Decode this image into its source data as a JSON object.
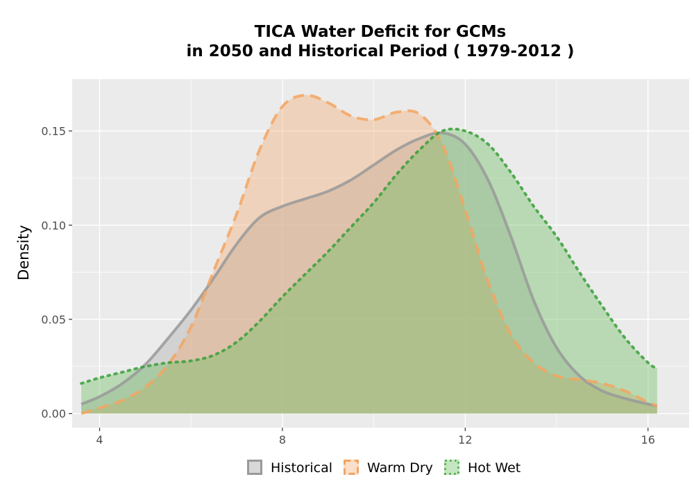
{
  "chart_data": {
    "type": "area",
    "title_line1": "TICA  Water Deficit for GCMs",
    "title_line2": "in 2050 and Historical Period ( 1979-2012 )",
    "xlabel": "",
    "ylabel": "Density",
    "xlim": [
      3.4,
      16.9
    ],
    "ylim": [
      -0.0075,
      0.1775
    ],
    "x_ticks": [
      4,
      8,
      12,
      16
    ],
    "x_tick_labels": [
      "4",
      "8",
      "12",
      "16"
    ],
    "y_ticks": [
      0.0,
      0.05,
      0.1,
      0.15
    ],
    "y_tick_labels": [
      "0.00",
      "0.05",
      "0.10",
      "0.15"
    ],
    "grid": true,
    "legend_position": "bottom",
    "series": [
      {
        "name": "Historical",
        "color": "#999999",
        "fill": "#c8c8c8",
        "fill_opacity": 0.7,
        "line_style": "solid",
        "x": [
          3.6,
          4.0,
          4.5,
          5.0,
          5.5,
          6.0,
          6.5,
          7.0,
          7.5,
          8.0,
          8.5,
          9.0,
          9.5,
          10.0,
          10.5,
          11.0,
          11.5,
          12.0,
          12.5,
          13.0,
          13.5,
          14.0,
          14.5,
          15.0,
          15.5,
          16.0,
          16.2
        ],
        "y": [
          0.005,
          0.009,
          0.016,
          0.026,
          0.04,
          0.055,
          0.072,
          0.09,
          0.104,
          0.11,
          0.114,
          0.118,
          0.124,
          0.132,
          0.14,
          0.146,
          0.149,
          0.143,
          0.124,
          0.094,
          0.06,
          0.035,
          0.02,
          0.012,
          0.008,
          0.005,
          0.004
        ]
      },
      {
        "name": "Warm Dry",
        "color": "#f4a460",
        "fill": "#f4a460",
        "fill_opacity": 0.35,
        "line_style": "dashed",
        "x": [
          3.6,
          4.0,
          4.5,
          5.0,
          5.5,
          6.0,
          6.5,
          7.0,
          7.5,
          8.0,
          8.5,
          9.0,
          9.5,
          10.0,
          10.5,
          11.0,
          11.5,
          12.0,
          12.5,
          13.0,
          13.5,
          14.0,
          14.5,
          15.0,
          15.5,
          16.0,
          16.2
        ],
        "y": [
          0.0,
          0.003,
          0.007,
          0.014,
          0.026,
          0.046,
          0.076,
          0.106,
          0.14,
          0.163,
          0.169,
          0.165,
          0.158,
          0.156,
          0.16,
          0.159,
          0.143,
          0.108,
          0.07,
          0.042,
          0.027,
          0.02,
          0.018,
          0.016,
          0.012,
          0.006,
          0.004
        ]
      },
      {
        "name": "Hot Wet",
        "color": "#3a9f3a",
        "fill": "#6cbf60",
        "fill_opacity": 0.4,
        "line_style": "dotted",
        "x": [
          3.6,
          4.0,
          4.5,
          5.0,
          5.5,
          6.0,
          6.5,
          7.0,
          7.5,
          8.0,
          8.5,
          9.0,
          9.5,
          10.0,
          10.5,
          11.0,
          11.5,
          12.0,
          12.5,
          13.0,
          13.5,
          14.0,
          14.5,
          15.0,
          15.5,
          16.0,
          16.2
        ],
        "y": [
          0.016,
          0.019,
          0.022,
          0.025,
          0.027,
          0.028,
          0.031,
          0.038,
          0.049,
          0.062,
          0.074,
          0.086,
          0.099,
          0.112,
          0.127,
          0.14,
          0.15,
          0.15,
          0.143,
          0.128,
          0.11,
          0.094,
          0.075,
          0.057,
          0.04,
          0.027,
          0.024
        ]
      }
    ]
  }
}
